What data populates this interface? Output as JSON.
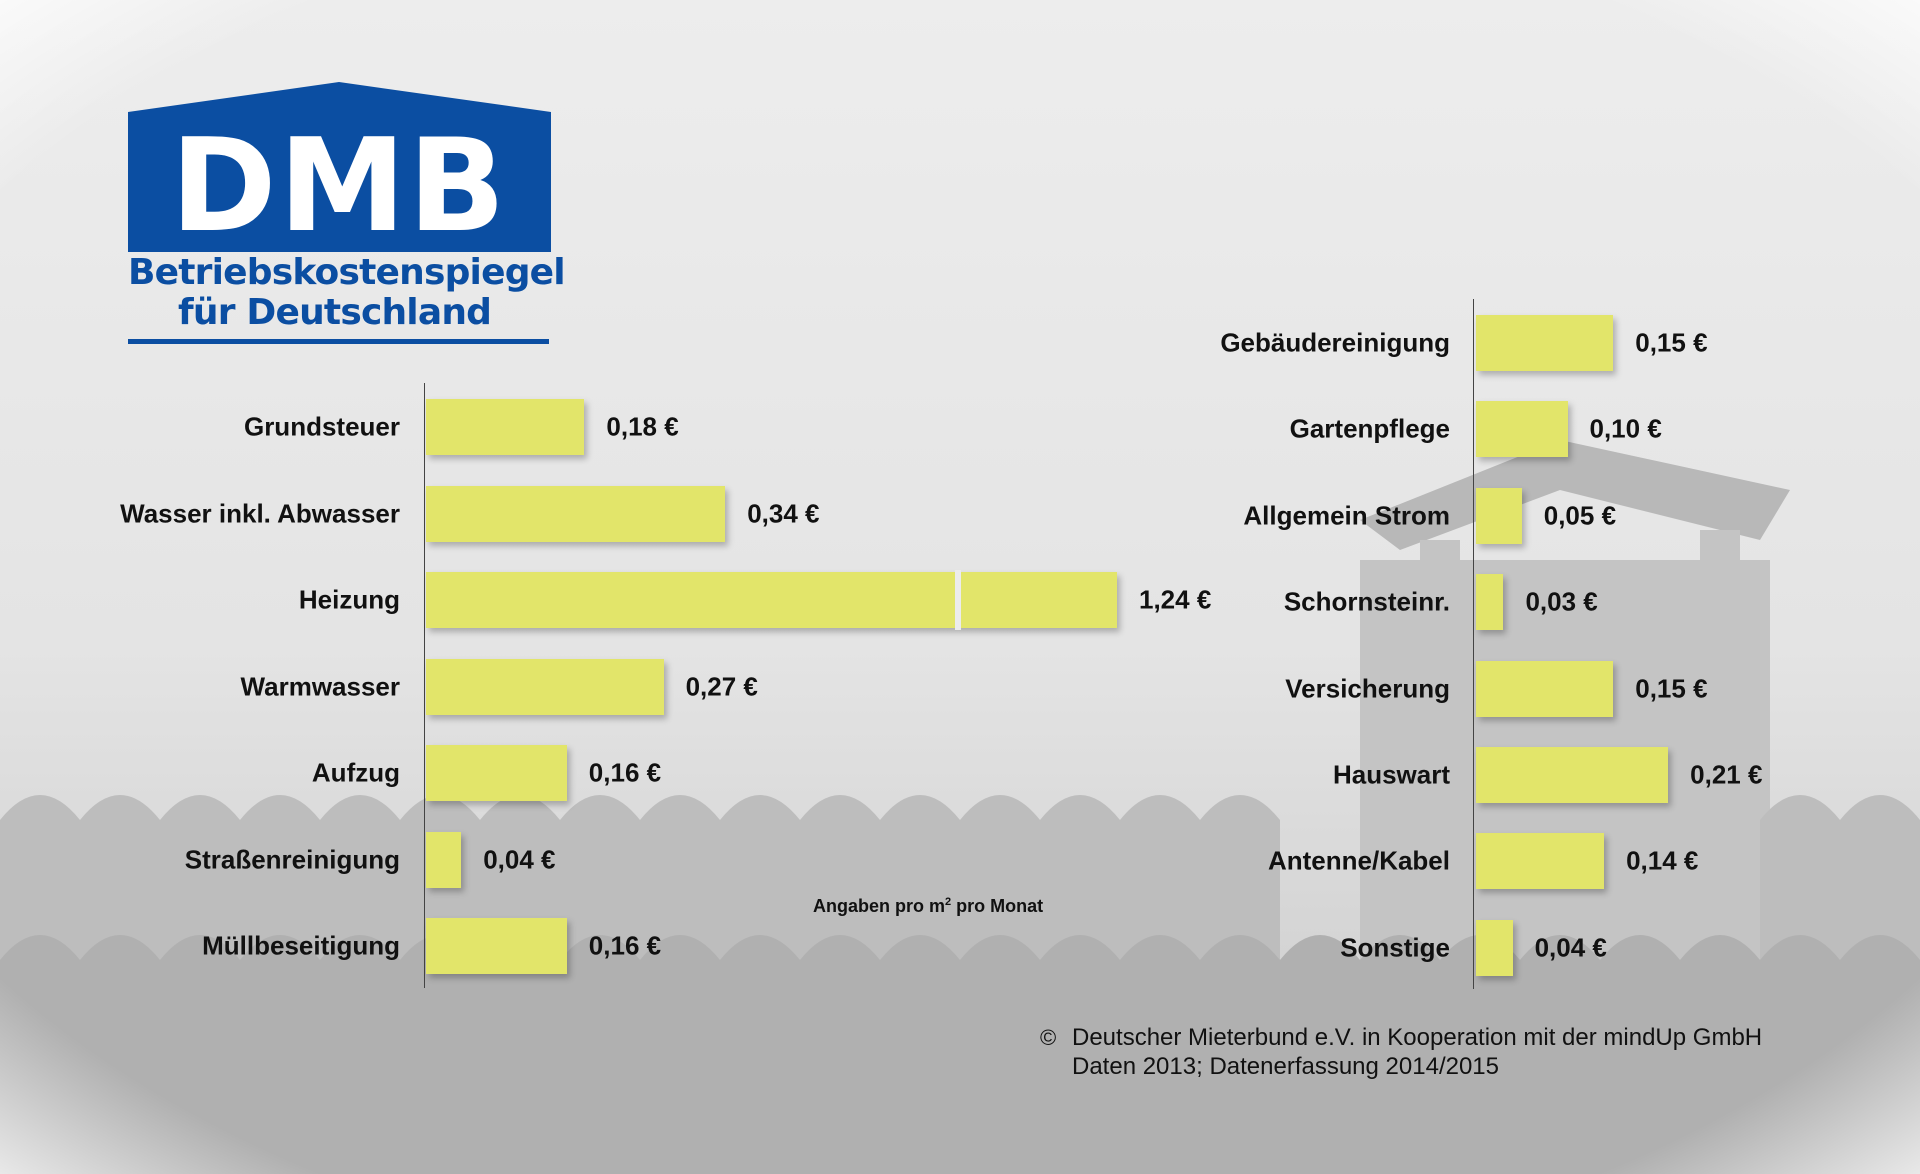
{
  "logo": {
    "brand": "DMB",
    "line1": "Betriebskostenspiegel",
    "line2": "für Deutschland"
  },
  "colors": {
    "bar": "#e2e56a",
    "logo": "#0b4ea2"
  },
  "unit_note": {
    "prefix": "Angaben pro m",
    "sup": "2",
    "suffix": " pro Monat"
  },
  "footer": {
    "copyright_symbol": "©",
    "line1": "Deutscher Mieterbund e.V. in Kooperation mit der mindUp GmbH",
    "line2": "Daten 2013; Datenerfassung 2014/2015"
  },
  "chart_data": [
    {
      "type": "bar",
      "orientation": "horizontal",
      "unit": "€ pro m² pro Monat",
      "categories": [
        "Grundsteuer",
        "Wasser inkl. Abwasser",
        "Heizung",
        "Warmwasser",
        "Aufzug",
        "Straßenreinigung",
        "Müllbeseitigung"
      ],
      "values": [
        0.18,
        0.34,
        1.24,
        0.27,
        0.16,
        0.04,
        0.16
      ],
      "labels": [
        "0,18 €",
        "0,34 €",
        "1,24 €",
        "0,27 €",
        "0,16 €",
        "0,04 €",
        "0,16 €"
      ],
      "broken_bar": "Heizung"
    },
    {
      "type": "bar",
      "orientation": "horizontal",
      "unit": "€ pro m² pro Monat",
      "categories": [
        "Gebäudereinigung",
        "Gartenpflege",
        "Allgemein Strom",
        "Schornsteinr.",
        "Versicherung",
        "Hauswart",
        "Antenne/Kabel",
        "Sonstige"
      ],
      "values": [
        0.15,
        0.1,
        0.05,
        0.03,
        0.15,
        0.21,
        0.14,
        0.04
      ],
      "labels": [
        "0,15 €",
        "0,10 €",
        "0,05 €",
        "0,03 €",
        "0,15 €",
        "0,21 €",
        "0,14 €",
        "0,04 €"
      ]
    }
  ]
}
